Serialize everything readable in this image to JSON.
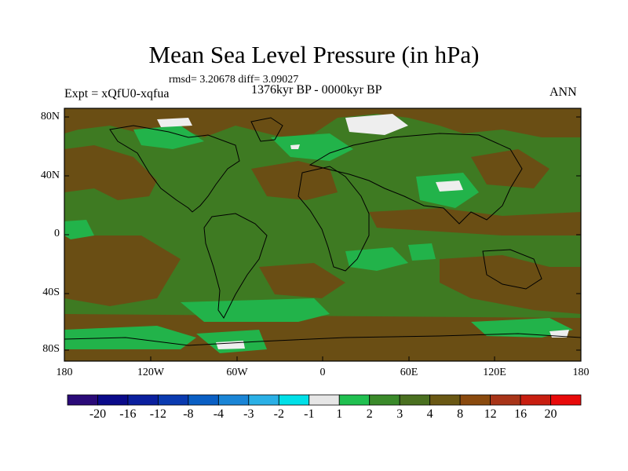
{
  "title": "Mean Sea Level Pressure (in hPa)",
  "stats": "rmsd= 3.20678  diff= 3.09027",
  "period": "1376kyr BP - 0000kyr BP",
  "experiment": "Expt = xQfU0-xqfua",
  "season": "ANN",
  "lat_labels": [
    "80N",
    "40N",
    "0",
    "40S",
    "80S"
  ],
  "lon_labels": [
    "180",
    "120W",
    "60W",
    "0",
    "60E",
    "120E",
    "180"
  ],
  "colorbar": {
    "labels": [
      "-20",
      "-16",
      "-12",
      "-8",
      "-4",
      "-3",
      "-2",
      "-1",
      "1",
      "2",
      "3",
      "4",
      "8",
      "12",
      "16",
      "20"
    ],
    "colors": [
      "#2a0a78",
      "#0a0a8a",
      "#0a1f9e",
      "#0a3ab0",
      "#0a5fc4",
      "#1a85d6",
      "#2ab0e6",
      "#00e0e8",
      "#e6e6e6",
      "#20c050",
      "#3a8a2a",
      "#4a7020",
      "#6a5814",
      "#8a4a0e",
      "#a83418",
      "#c81e10",
      "#e80a0a"
    ]
  },
  "palette": {
    "land_green": "#3e7a22",
    "bright_green": "#22b34a",
    "brown": "#6a4e14",
    "white": "#eeeeee"
  }
}
